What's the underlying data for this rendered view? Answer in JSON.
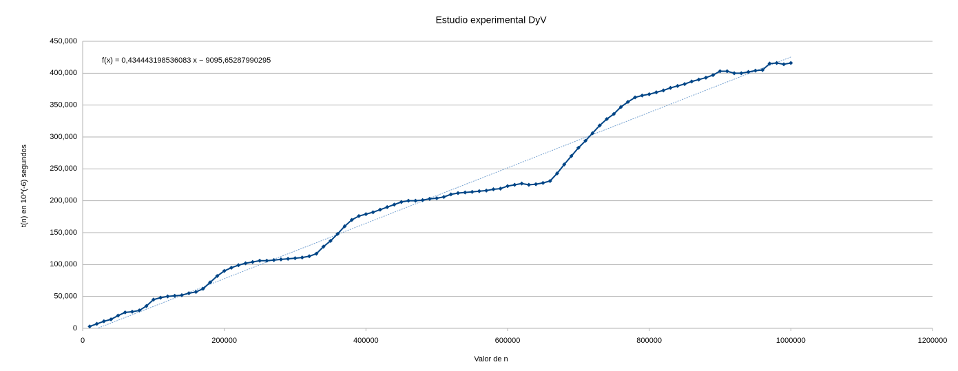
{
  "chart_data": {
    "type": "line",
    "title": "Estudio experimental DyV",
    "x_label": "Valor de n",
    "y_label": "t(n) en 10^(-6) segundos",
    "x": [
      10000,
      20000,
      30000,
      40000,
      50000,
      60000,
      70000,
      80000,
      90000,
      100000,
      110000,
      120000,
      130000,
      140000,
      150000,
      160000,
      170000,
      180000,
      190000,
      200000,
      210000,
      220000,
      230000,
      240000,
      250000,
      260000,
      270000,
      280000,
      290000,
      300000,
      310000,
      320000,
      330000,
      340000,
      350000,
      360000,
      370000,
      380000,
      390000,
      400000,
      410000,
      420000,
      430000,
      440000,
      450000,
      460000,
      470000,
      480000,
      490000,
      500000,
      510000,
      520000,
      530000,
      540000,
      550000,
      560000,
      570000,
      580000,
      590000,
      600000,
      610000,
      620000,
      630000,
      640000,
      650000,
      660000,
      670000,
      680000,
      690000,
      700000,
      710000,
      720000,
      730000,
      740000,
      750000,
      760000,
      770000,
      780000,
      790000,
      800000,
      810000,
      820000,
      830000,
      840000,
      850000,
      860000,
      870000,
      880000,
      890000,
      900000,
      910000,
      920000,
      930000,
      940000,
      950000,
      960000,
      970000,
      980000,
      990000,
      1000000
    ],
    "series": [
      {
        "color": "#004586",
        "values": [
          3000,
          7000,
          11000,
          14000,
          20000,
          25000,
          26000,
          28000,
          35000,
          45000,
          48000,
          50000,
          51000,
          52000,
          55000,
          57000,
          62000,
          72000,
          82000,
          90000,
          95000,
          99000,
          102000,
          104000,
          106000,
          106000,
          107000,
          108000,
          109000,
          110000,
          111000,
          113000,
          117000,
          128000,
          137000,
          148000,
          160000,
          170000,
          176000,
          179000,
          182000,
          186000,
          190000,
          194000,
          198000,
          200000,
          200000,
          201000,
          203000,
          204000,
          206000,
          210000,
          212000,
          213000,
          214000,
          215000,
          216000,
          218000,
          219000,
          223000,
          225000,
          227000,
          225000,
          226000,
          228000,
          231000,
          243000,
          257000,
          270000,
          283000,
          294000,
          306000,
          318000,
          328000,
          336000,
          347000,
          355000,
          362000,
          365000,
          367000,
          370000,
          373000,
          377000,
          380000,
          383000,
          387000,
          390000,
          393000,
          397000,
          403000,
          403000,
          400000,
          400000,
          402000,
          404000,
          405000,
          415000,
          416000,
          414000,
          416000
        ]
      }
    ],
    "trendline": {
      "slope": 0.434443198536083,
      "intercept": -9095.65287990295,
      "color": "#729fcf",
      "label": "f(x) = 0,434443198536083 x − 9095,65287990295"
    },
    "xlim": [
      0,
      1200000
    ],
    "xticks": [
      0,
      200000,
      400000,
      600000,
      800000,
      1000000,
      1200000
    ],
    "ylim": [
      0,
      450000
    ],
    "yticks": [
      {
        "value": 0,
        "label": "0"
      },
      {
        "value": 50000,
        "label": "50,000"
      },
      {
        "value": 100000,
        "label": "100,000"
      },
      {
        "value": 150000,
        "label": "150,000"
      },
      {
        "value": 200000,
        "label": "200,000"
      },
      {
        "value": 250000,
        "label": "250,000"
      },
      {
        "value": 300000,
        "label": "300,000"
      },
      {
        "value": 350000,
        "label": "350,000"
      },
      {
        "value": 400000,
        "label": "400,000"
      },
      {
        "value": 450000,
        "label": "450,000"
      }
    ],
    "grid": true
  }
}
